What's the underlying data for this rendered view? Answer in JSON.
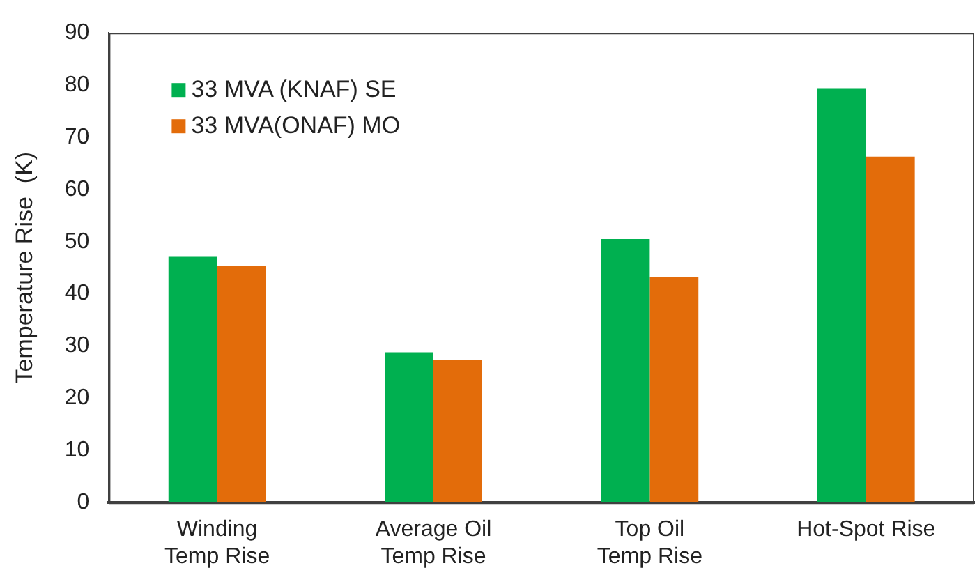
{
  "chart_data": {
    "type": "bar",
    "ylabel": "Temperature Rise  (K)",
    "categories": [
      "Winding\nTemp Rise",
      "Average Oil\nTemp Rise",
      "Top Oil\nTemp Rise",
      "Hot-Spot Rise"
    ],
    "series": [
      {
        "name": "33 MVA (KNAF) SE",
        "color": "#00b050",
        "values": [
          47.1,
          28.8,
          50.5,
          79.4
        ]
      },
      {
        "name": "33 MVA(ONAF) MO",
        "color": "#e36c0a",
        "values": [
          45.3,
          27.4,
          43.2,
          66.3
        ]
      }
    ],
    "ylim": [
      0,
      90
    ],
    "yticks": [
      0,
      10,
      20,
      30,
      40,
      50,
      60,
      70,
      80,
      90
    ],
    "grid": false,
    "legend": "top left"
  }
}
